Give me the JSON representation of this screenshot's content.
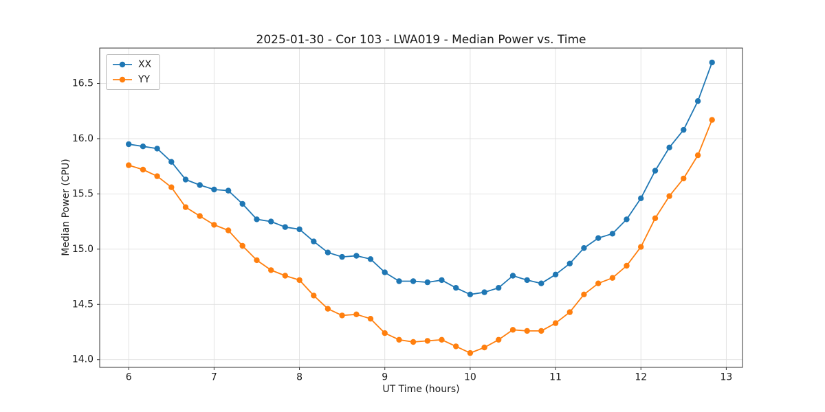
{
  "chart_data": {
    "type": "line",
    "title": "2025-01-30 - Cor 103 - LWA019 - Median Power vs. Time",
    "xlabel": "UT Time (hours)",
    "ylabel": "Median Power (CPU)",
    "xlim": [
      5.66,
      13.19
    ],
    "ylim": [
      13.93,
      16.82
    ],
    "xticks": [
      6,
      7,
      8,
      9,
      10,
      11,
      12,
      13
    ],
    "yticks": [
      14.0,
      14.5,
      15.0,
      15.5,
      16.0,
      16.5
    ],
    "grid": true,
    "legend_position": "upper left",
    "x": [
      6.0,
      6.167,
      6.333,
      6.5,
      6.667,
      6.833,
      7.0,
      7.167,
      7.333,
      7.5,
      7.667,
      7.833,
      8.0,
      8.167,
      8.333,
      8.5,
      8.667,
      8.833,
      9.0,
      9.167,
      9.333,
      9.5,
      9.667,
      9.833,
      10.0,
      10.167,
      10.333,
      10.5,
      10.667,
      10.833,
      11.0,
      11.167,
      11.333,
      11.5,
      11.667,
      11.833,
      12.0,
      12.167,
      12.333,
      12.5,
      12.667,
      12.833
    ],
    "series": [
      {
        "name": "XX",
        "color": "#1f77b4",
        "values": [
          15.95,
          15.93,
          15.91,
          15.79,
          15.63,
          15.58,
          15.54,
          15.53,
          15.41,
          15.27,
          15.25,
          15.2,
          15.18,
          15.07,
          14.97,
          14.93,
          14.94,
          14.91,
          14.79,
          14.71,
          14.71,
          14.7,
          14.72,
          14.65,
          14.59,
          14.61,
          14.65,
          14.76,
          14.72,
          14.69,
          14.77,
          14.87,
          15.01,
          15.1,
          15.14,
          15.27,
          15.46,
          15.71,
          15.92,
          16.08,
          16.34,
          16.69
        ]
      },
      {
        "name": "YY",
        "color": "#ff7f0e",
        "values": [
          15.76,
          15.72,
          15.66,
          15.56,
          15.38,
          15.3,
          15.22,
          15.17,
          15.03,
          14.9,
          14.81,
          14.76,
          14.72,
          14.58,
          14.46,
          14.4,
          14.41,
          14.37,
          14.24,
          14.18,
          14.16,
          14.17,
          14.18,
          14.12,
          14.06,
          14.11,
          14.18,
          14.27,
          14.26,
          14.26,
          14.33,
          14.43,
          14.59,
          14.69,
          14.74,
          14.85,
          15.02,
          15.28,
          15.48,
          15.64,
          15.85,
          16.17
        ]
      }
    ],
    "style": {
      "grid_color": "#e0e0e0",
      "spine_color": "#333333",
      "marker_radius": 4.2,
      "line_width": 1.8
    }
  }
}
